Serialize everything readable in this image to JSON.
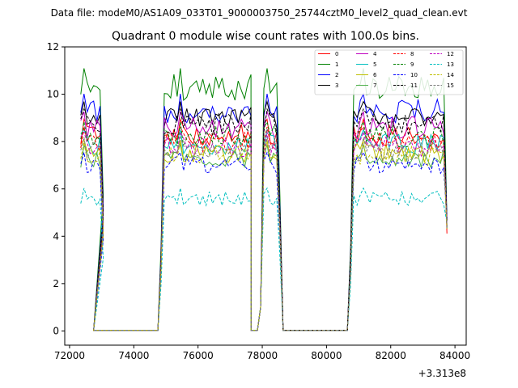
{
  "figure": {
    "suptitle": "Data file: modeM0/AS1A09_033T01_9000003750_25744cztM0_level2_quad_clean.evt"
  },
  "chart_data": {
    "type": "line",
    "title": "Quadrant 0 module wise count rates with 100.0s bins.",
    "xlabel": "",
    "ylabel": "",
    "x_offset_label": "+3.313e8",
    "xlim": [
      71850,
      84350
    ],
    "ylim": [
      -0.6,
      12
    ],
    "xticks": [
      72000,
      74000,
      76000,
      78000,
      80000,
      82000,
      84000
    ],
    "xtick_labels": [
      "72000",
      "74000",
      "76000",
      "78000",
      "80000",
      "82000",
      "84000"
    ],
    "yticks": [
      0,
      2,
      4,
      6,
      8,
      10,
      12
    ],
    "ytick_labels": [
      "0",
      "2",
      "4",
      "6",
      "8",
      "10",
      "12"
    ],
    "legend_placement": "top-right",
    "segments": [
      {
        "start": 72350,
        "count": 8,
        "peak_index": 1
      },
      {
        "start": 72750,
        "count": 21,
        "flat": true
      },
      {
        "start": 74850,
        "count": 29,
        "peak_index": 6
      },
      {
        "start": 77650,
        "count": 2,
        "flat": true
      },
      {
        "start": 77850,
        "count": 2,
        "ramp": true
      },
      {
        "start": 78050,
        "count": 6,
        "peak_index": 1
      },
      {
        "start": 78650,
        "count": 21,
        "flat": true
      },
      {
        "start": 80750,
        "count": 31,
        "peak_index": 4
      }
    ],
    "series": [
      {
        "name": "0",
        "color": "#ff0000",
        "dash": "solid",
        "level": 8.3
      },
      {
        "name": "1",
        "color": "#008000",
        "dash": "solid",
        "level": 10.3
      },
      {
        "name": "2",
        "color": "#0000ff",
        "dash": "solid",
        "level": 9.3
      },
      {
        "name": "3",
        "color": "#000000",
        "dash": "solid",
        "level": 9.0
      },
      {
        "name": "4",
        "color": "#bf00bf",
        "dash": "solid",
        "level": 8.6
      },
      {
        "name": "5",
        "color": "#00bfbf",
        "dash": "solid",
        "level": 7.9
      },
      {
        "name": "6",
        "color": "#bfbf00",
        "dash": "solid",
        "level": 7.5
      },
      {
        "name": "7",
        "color": "#4daf4a",
        "dash": "solid",
        "level": 7.3
      },
      {
        "name": "8",
        "color": "#ff0000",
        "dash": "dashed",
        "level": 8.0
      },
      {
        "name": "9",
        "color": "#008000",
        "dash": "dashed",
        "level": 8.2
      },
      {
        "name": "10",
        "color": "#0000ff",
        "dash": "dashed",
        "level": 7.0
      },
      {
        "name": "11",
        "color": "#000000",
        "dash": "dashed",
        "level": 8.7
      },
      {
        "name": "12",
        "color": "#bf00bf",
        "dash": "dashed",
        "level": 7.8
      },
      {
        "name": "13",
        "color": "#00bfbf",
        "dash": "dashed",
        "level": 5.6
      },
      {
        "name": "14",
        "color": "#bfbf00",
        "dash": "dashed",
        "level": 7.4
      },
      {
        "name": "15",
        "color": "#7f7f7f",
        "dash": "dashed",
        "level": 7.6
      }
    ]
  }
}
